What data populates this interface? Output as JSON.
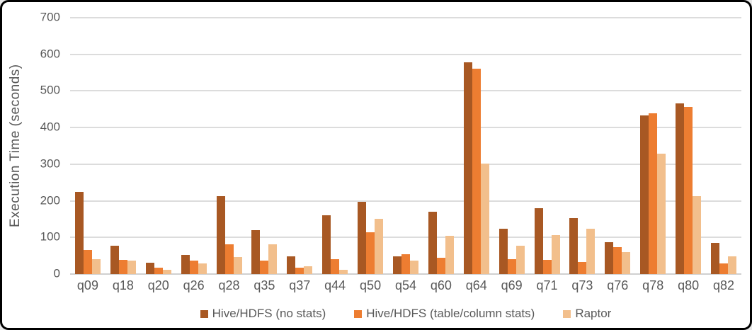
{
  "chart_data": {
    "type": "bar",
    "title": "",
    "xlabel": "",
    "ylabel": "Execution Time (seconds)",
    "ylim": [
      0,
      700
    ],
    "y_ticks": [
      0,
      100,
      200,
      300,
      400,
      500,
      600,
      700
    ],
    "grid": true,
    "legend_position": "bottom",
    "categories": [
      "q09",
      "q18",
      "q20",
      "q26",
      "q28",
      "q35",
      "q37",
      "q44",
      "q50",
      "q54",
      "q60",
      "q64",
      "q69",
      "q71",
      "q73",
      "q76",
      "q78",
      "q80",
      "q82"
    ],
    "series": [
      {
        "name": "Hive/HDFS (no stats)",
        "color": "#A85823",
        "values": [
          225,
          77,
          31,
          53,
          212,
          119,
          49,
          160,
          198,
          49,
          171,
          578,
          123,
          180,
          152,
          87,
          433,
          466,
          85
        ]
      },
      {
        "name": "Hive/HDFS (table/column stats)",
        "color": "#ED7D31",
        "values": [
          66,
          39,
          17,
          36,
          81,
          36,
          18,
          40,
          114,
          54,
          45,
          560,
          40,
          39,
          32,
          73,
          439,
          456,
          30
        ]
      },
      {
        "name": "Raptor",
        "color": "#F2BF8C",
        "values": [
          40,
          36,
          12,
          30,
          46,
          82,
          22,
          12,
          151,
          36,
          104,
          301,
          78,
          106,
          124,
          60,
          328,
          212,
          48
        ]
      }
    ]
  },
  "colors": {
    "text": "#595959",
    "gridline": "#DCDCDC",
    "axis_line": "#D0D0D0",
    "background": "#FFFFFF",
    "border": "#000000"
  }
}
